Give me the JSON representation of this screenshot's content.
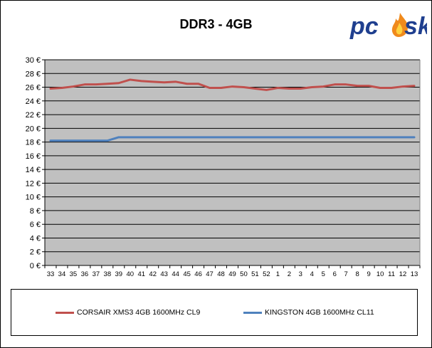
{
  "logo": {
    "text_pc": "pc",
    "text_ask": "sk",
    "flame_color": "#f08a1c"
  },
  "chart_data": {
    "type": "line",
    "title": "DDR3 - 4GB",
    "xlabel": "",
    "ylabel": "",
    "categories": [
      "33",
      "34",
      "35",
      "36",
      "37",
      "38",
      "39",
      "40",
      "41",
      "42",
      "43",
      "44",
      "45",
      "46",
      "47",
      "48",
      "49",
      "50",
      "51",
      "52",
      "1",
      "2",
      "3",
      "4",
      "5",
      "6",
      "7",
      "8",
      "9",
      "10",
      "11",
      "12",
      "13"
    ],
    "ylim": [
      0,
      30
    ],
    "y_ticks": [
      0,
      2,
      4,
      6,
      8,
      10,
      12,
      14,
      16,
      18,
      20,
      22,
      24,
      26,
      28,
      30
    ],
    "y_tick_suffix": " €",
    "grid": true,
    "legend_position": "bottom",
    "plot_background": "#c0c0c0",
    "series": [
      {
        "name": "CORSAIR XMS3 4GB 1600MHz CL9",
        "color": "#c0504d",
        "values": [
          25.8,
          25.9,
          26.1,
          26.4,
          26.4,
          26.5,
          26.6,
          27.1,
          26.9,
          26.8,
          26.7,
          26.8,
          26.5,
          26.5,
          25.9,
          25.9,
          26.1,
          26.0,
          25.8,
          25.6,
          25.9,
          25.8,
          25.8,
          26.0,
          26.1,
          26.4,
          26.4,
          26.2,
          26.2,
          25.9,
          25.9,
          26.1,
          26.2
        ]
      },
      {
        "name": "KINGSTON 4GB 1600MHz CL11",
        "color": "#4f81bd",
        "values": [
          18.2,
          18.2,
          18.2,
          18.2,
          18.2,
          18.2,
          18.7,
          18.7,
          18.7,
          18.7,
          18.7,
          18.7,
          18.7,
          18.7,
          18.7,
          18.7,
          18.7,
          18.7,
          18.7,
          18.7,
          18.7,
          18.7,
          18.7,
          18.7,
          18.7,
          18.7,
          18.7,
          18.7,
          18.7,
          18.7,
          18.7,
          18.7,
          18.7
        ]
      }
    ]
  }
}
